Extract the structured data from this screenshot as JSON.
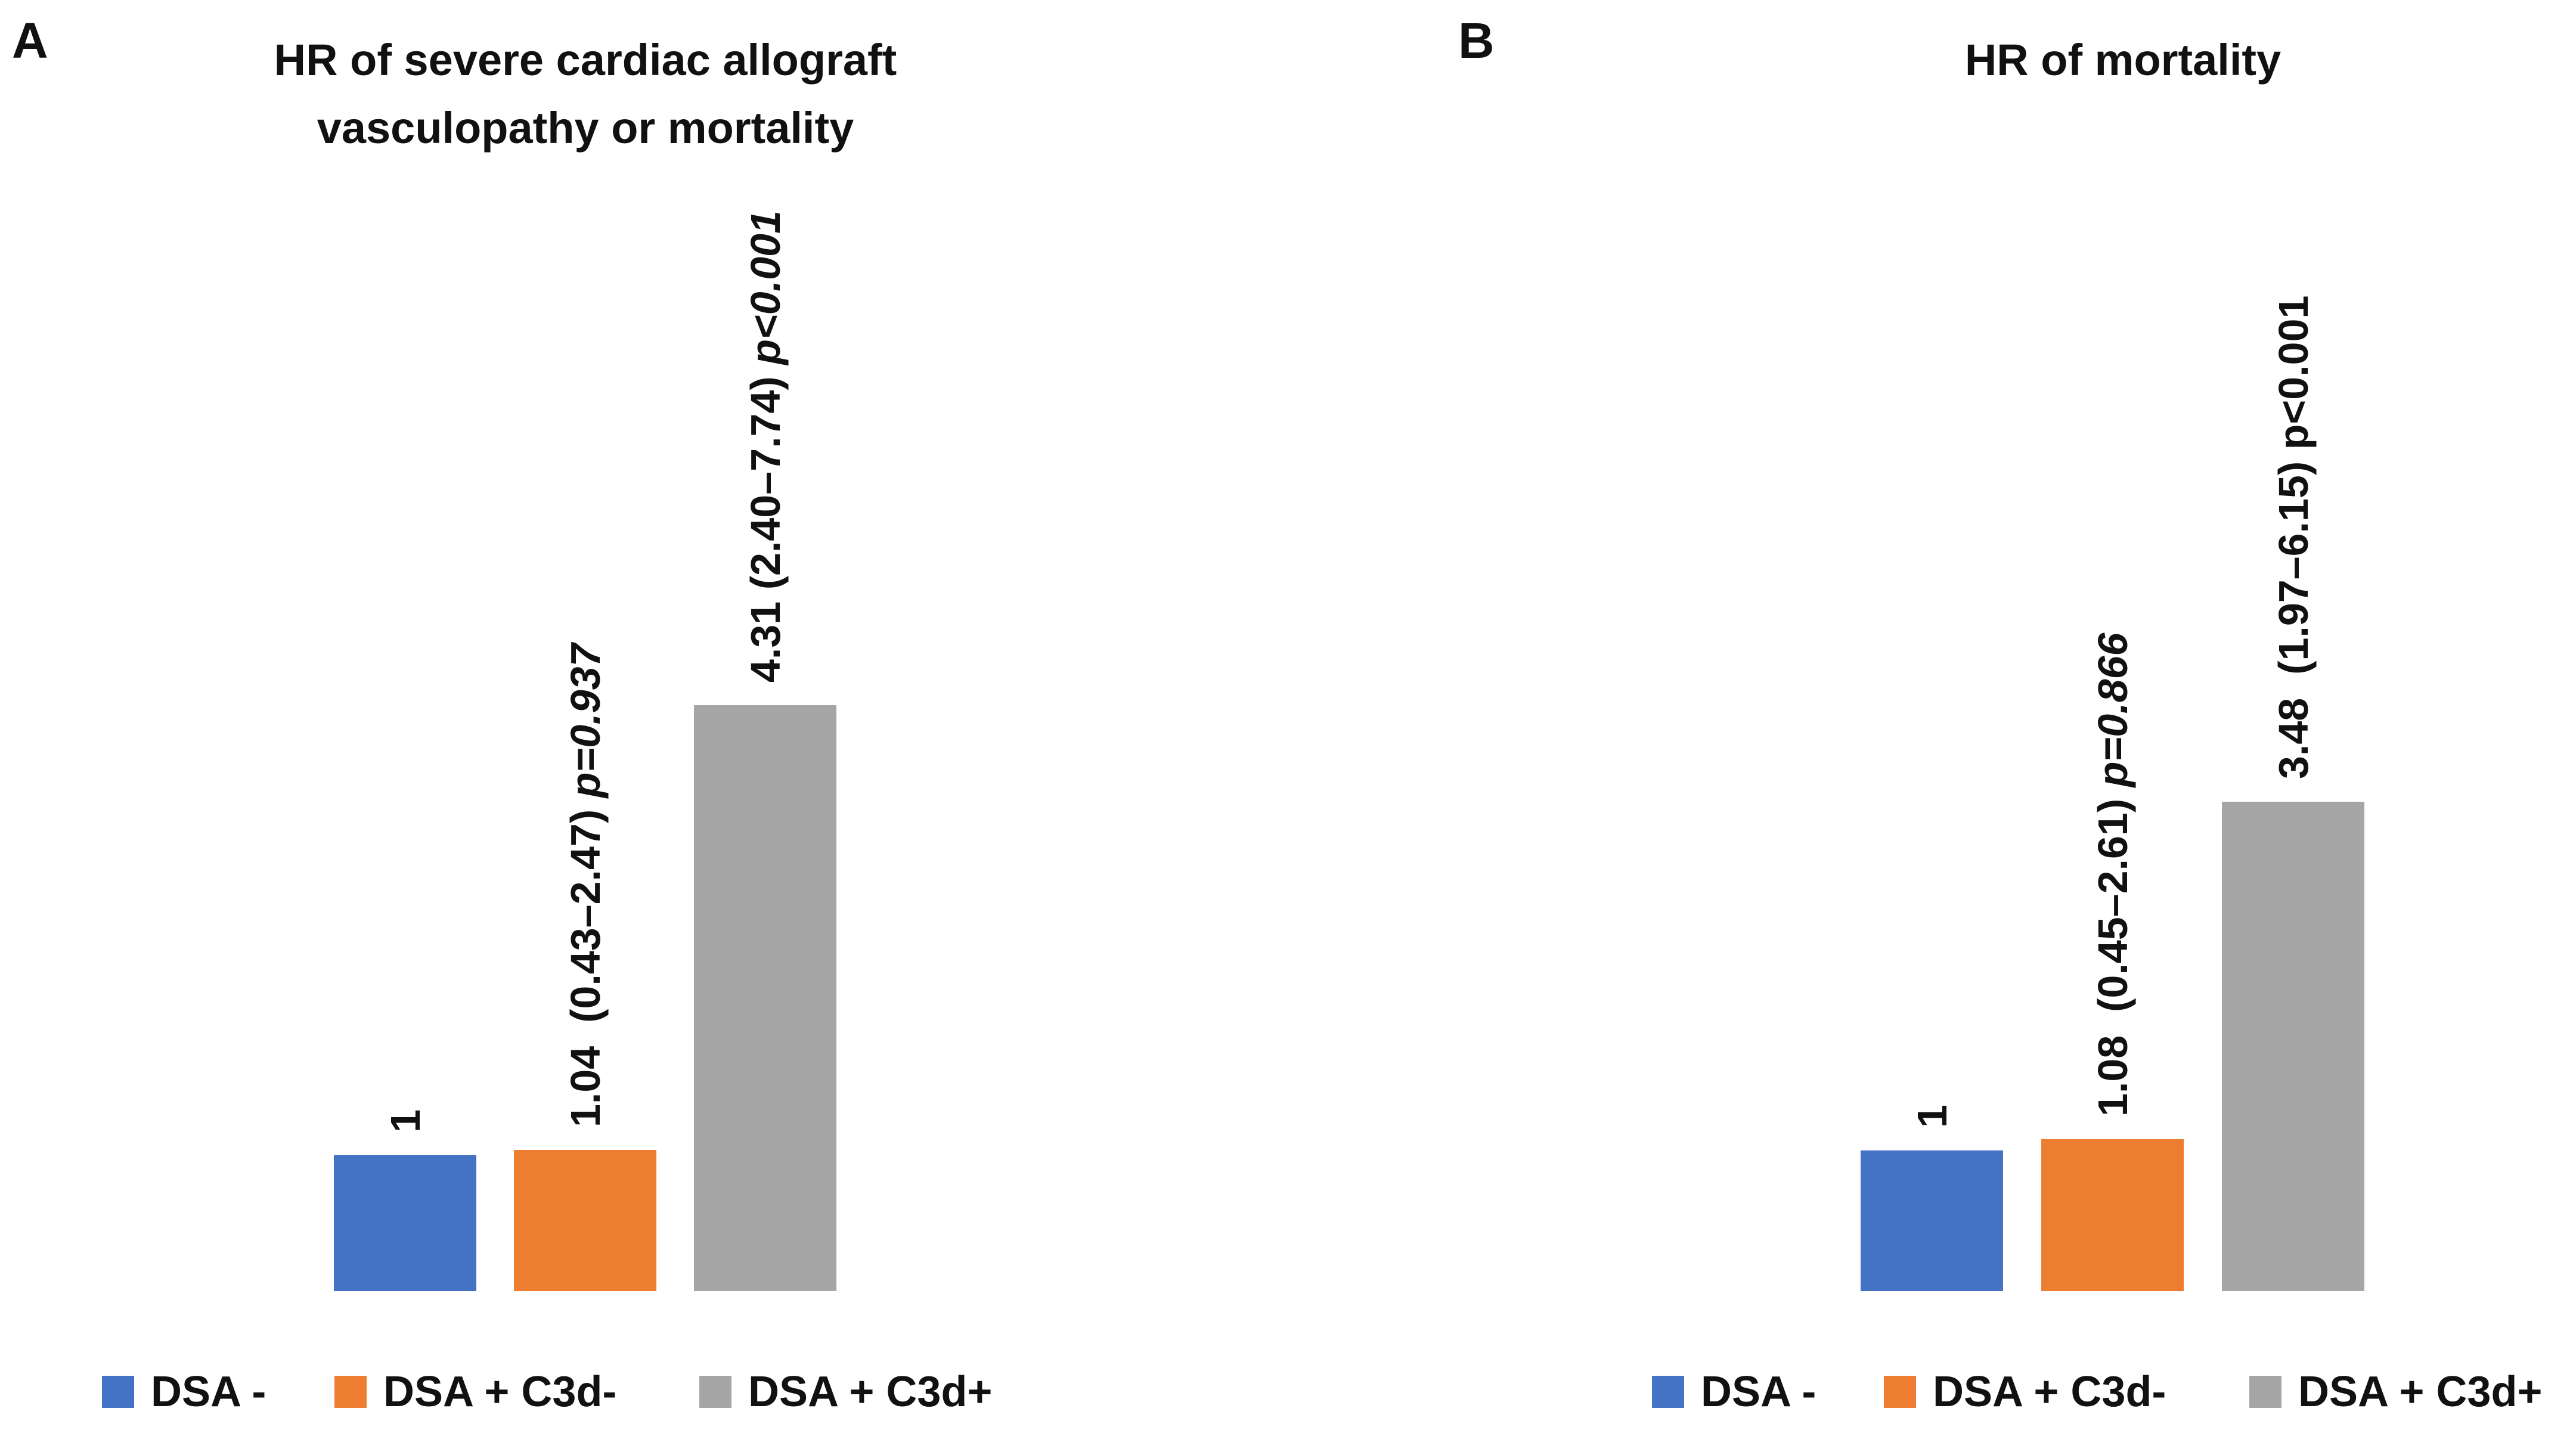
{
  "chart_data": [
    {
      "type": "bar",
      "panel_letter": "A",
      "title": "HR of severe cardiac allograft vasculopathy or mortality",
      "title_lines": [
        "HR of severe cardiac allograft",
        "vasculopathy or mortality"
      ],
      "categories": [
        "DSA -",
        "DSA + C3d-",
        "DSA + C3d+"
      ],
      "values": [
        1,
        1.04,
        4.31
      ],
      "colors": [
        "#4472C4",
        "#ED7D31",
        "#A6A6A6"
      ],
      "bar_labels": [
        {
          "text": "1",
          "p": "",
          "p_italic": false
        },
        {
          "text": "1.04  (0.43–2.47) ",
          "p": "p=0.937",
          "p_italic": true
        },
        {
          "text": "4.31 (2.40–7.74) ",
          "p": "p<0.001",
          "p_italic": true
        }
      ],
      "confidence_intervals": [
        null,
        [
          0.43,
          2.47
        ],
        [
          2.4,
          7.74
        ]
      ],
      "p_values": [
        null,
        "p=0.937",
        "p<0.001"
      ],
      "legend_entries": [
        "DSA -",
        "DSA + C3d-",
        "DSA + C3d+"
      ],
      "legend_position": "bottom",
      "xlabel": "",
      "ylabel": "",
      "ylim": [
        0,
        4.75
      ],
      "grid": false,
      "axes_visible": false
    },
    {
      "type": "bar",
      "panel_letter": "B",
      "title": "HR of mortality",
      "title_lines": [
        "HR of mortality"
      ],
      "categories": [
        "DSA -",
        "DSA + C3d-",
        "DSA + C3d+"
      ],
      "values": [
        1,
        1.08,
        3.48
      ],
      "colors": [
        "#4472C4",
        "#ED7D31",
        "#A6A6A6"
      ],
      "bar_labels": [
        {
          "text": "1",
          "p": "",
          "p_italic": false
        },
        {
          "text": "1.08  (0.45–2.61) ",
          "p": "p=0.866",
          "p_italic": true
        },
        {
          "text": "3.48  (1.97–6.15) ",
          "p": "p<0.001",
          "p_italic": false
        }
      ],
      "confidence_intervals": [
        null,
        [
          0.45,
          2.61
        ],
        [
          1.97,
          6.15
        ]
      ],
      "p_values": [
        null,
        "p=0.866",
        "p<0.001"
      ],
      "legend_entries": [
        "DSA -",
        "DSA + C3d-",
        "DSA + C3d+"
      ],
      "legend_position": "bottom",
      "xlabel": "",
      "ylabel": "",
      "ylim": [
        0,
        4.0
      ],
      "grid": false,
      "axes_visible": false
    }
  ]
}
